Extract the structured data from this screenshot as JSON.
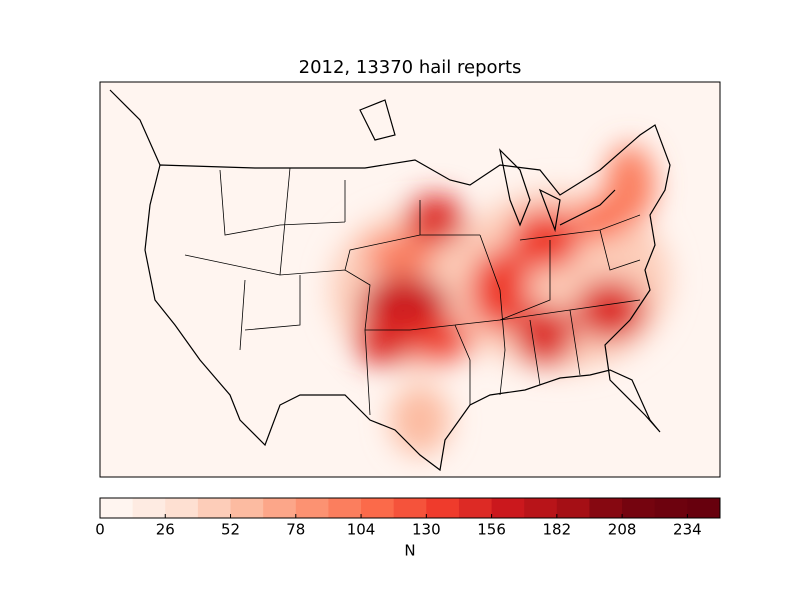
{
  "chart_data": {
    "type": "contour-map",
    "title": "2012, 13370 hail reports",
    "colorbar_label": "N",
    "levels": [
      0,
      13,
      26,
      39,
      52,
      65,
      78,
      91,
      104,
      117,
      130,
      143,
      156,
      169,
      182,
      195,
      208,
      221,
      234,
      247
    ],
    "colors": [
      "#fff5f0",
      "#feebe2",
      "#fee0d2",
      "#fdcdb9",
      "#fcbba1",
      "#fca689",
      "#fc9272",
      "#fb7e5e",
      "#fb6a4a",
      "#f5533b",
      "#ef3b2c",
      "#dd2a25",
      "#cb181d",
      "#b81419",
      "#a50f15",
      "#860811",
      "#75040f",
      "#6d020e",
      "#67000d"
    ],
    "clim": [
      0,
      247
    ],
    "cticks": [
      0,
      26,
      52,
      78,
      104,
      130,
      156,
      182,
      208,
      234
    ]
  }
}
